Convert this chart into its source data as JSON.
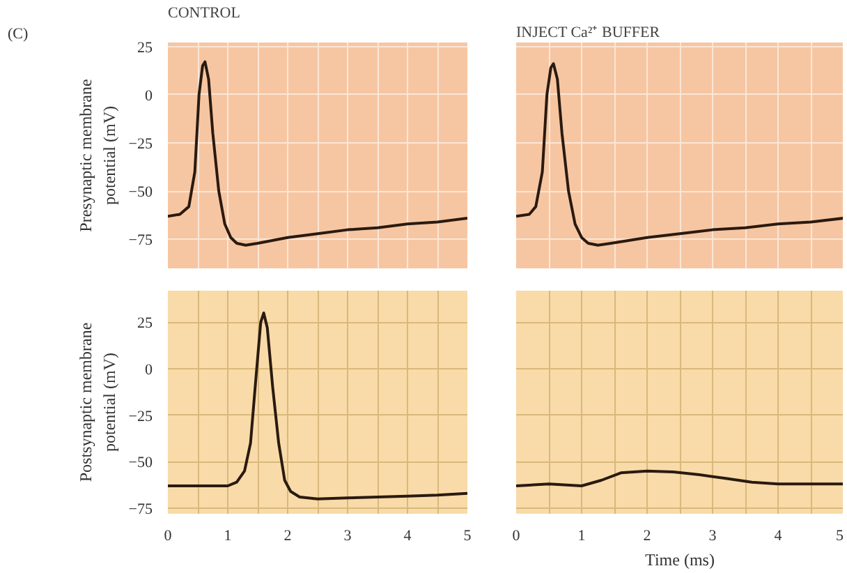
{
  "chart_data": [
    {
      "type": "line",
      "title": "CONTROL",
      "ylabel": "Presynaptic membrane\npotential (mV)",
      "annotations": [
        "(C)"
      ],
      "tick_labels": "y",
      "grid": true,
      "xlim": [
        0,
        5
      ],
      "ylim": [
        -90,
        27
      ],
      "xticks": [
        0,
        {
          "value": 0.5,
          "label": null
        },
        1,
        {
          "value": 1.5,
          "label": null
        },
        2,
        {
          "value": 2.5,
          "label": null
        },
        3,
        {
          "value": 3.5,
          "label": null
        },
        4,
        {
          "value": 4.5,
          "label": null
        },
        5
      ],
      "yticks": [
        -75,
        -50,
        -25,
        0,
        25
      ],
      "series": [
        {
          "color": "#2a1a10",
          "x": [
            0,
            0.2,
            0.35,
            0.45,
            0.52,
            0.58,
            0.62,
            0.68,
            0.75,
            0.85,
            0.95,
            1.05,
            1.15,
            1.3,
            1.5,
            2,
            2.5,
            3,
            3.5,
            4,
            4.5,
            5
          ],
          "values": [
            -63,
            -62,
            -58,
            -40,
            0,
            15,
            17,
            8,
            -20,
            -50,
            -67,
            -74,
            -77,
            -78,
            -77,
            -74,
            -72,
            -70,
            -69,
            -67,
            -66,
            -64
          ]
        }
      ]
    },
    {
      "type": "line",
      "title": "INJECT Ca²⁺ BUFFER",
      "tick_labels": false,
      "grid": true,
      "xlim": [
        0,
        5
      ],
      "ylim": [
        -90,
        27
      ],
      "xticks": [
        0,
        {
          "value": 0.5,
          "label": null
        },
        1,
        {
          "value": 1.5,
          "label": null
        },
        2,
        {
          "value": 2.5,
          "label": null
        },
        3,
        {
          "value": 3.5,
          "label": null
        },
        4,
        {
          "value": 4.5,
          "label": null
        },
        5
      ],
      "yticks": [
        -75,
        -50,
        -25,
        0,
        25
      ],
      "series": [
        {
          "color": "#2a1a10",
          "x": [
            0,
            0.2,
            0.3,
            0.4,
            0.47,
            0.53,
            0.57,
            0.63,
            0.7,
            0.8,
            0.9,
            1,
            1.1,
            1.25,
            1.45,
            2,
            2.5,
            3,
            3.5,
            4,
            4.5,
            5
          ],
          "values": [
            -63,
            -62,
            -58,
            -40,
            0,
            14,
            16,
            8,
            -20,
            -50,
            -67,
            -74,
            -77,
            -78,
            -77,
            -74,
            -72,
            -70,
            -69,
            -67,
            -66,
            -64
          ]
        }
      ]
    },
    {
      "type": "line",
      "ylabel": "Postsynaptic membrane\npotential (mV)",
      "grid": true,
      "xlim": [
        0,
        5
      ],
      "ylim": [
        -78,
        42
      ],
      "xticks": [
        0,
        {
          "value": 0.5,
          "label": null
        },
        1,
        {
          "value": 1.5,
          "label": null
        },
        2,
        {
          "value": 2.5,
          "label": null
        },
        3,
        {
          "value": 3.5,
          "label": null
        },
        4,
        {
          "value": 4.5,
          "label": null
        },
        5
      ],
      "yticks": [
        -75,
        -50,
        -25,
        0,
        25
      ],
      "series": [
        {
          "color": "#2a1a10",
          "x": [
            0,
            0.5,
            1,
            1.15,
            1.28,
            1.38,
            1.47,
            1.55,
            1.6,
            1.66,
            1.75,
            1.85,
            1.95,
            2.05,
            2.2,
            2.5,
            3,
            3.5,
            4,
            4.5,
            5
          ],
          "values": [
            -63,
            -63,
            -63,
            -61,
            -55,
            -40,
            -5,
            25,
            30,
            22,
            -10,
            -40,
            -60,
            -66,
            -69,
            -70,
            -69.5,
            -69,
            -68.5,
            -68,
            -67
          ]
        }
      ]
    },
    {
      "type": "line",
      "xlabel": "Time (ms)",
      "tick_labels": "x",
      "grid": true,
      "xlim": [
        0,
        5
      ],
      "ylim": [
        -78,
        42
      ],
      "xticks": [
        0,
        {
          "value": 0.5,
          "label": null
        },
        1,
        {
          "value": 1.5,
          "label": null
        },
        2,
        {
          "value": 2.5,
          "label": null
        },
        3,
        {
          "value": 3.5,
          "label": null
        },
        4,
        {
          "value": 4.5,
          "label": null
        },
        5
      ],
      "yticks": [
        -75,
        -50,
        -25,
        0,
        25
      ],
      "series": [
        {
          "color": "#2a1a10",
          "x": [
            0,
            0.5,
            1,
            1.3,
            1.6,
            2,
            2.4,
            2.8,
            3.2,
            3.6,
            4,
            4.5,
            5
          ],
          "values": [
            -63,
            -62,
            -63,
            -60,
            -56,
            -55,
            -55.5,
            -57,
            -59,
            -61,
            -62,
            -62,
            -62
          ]
        }
      ]
    }
  ]
}
